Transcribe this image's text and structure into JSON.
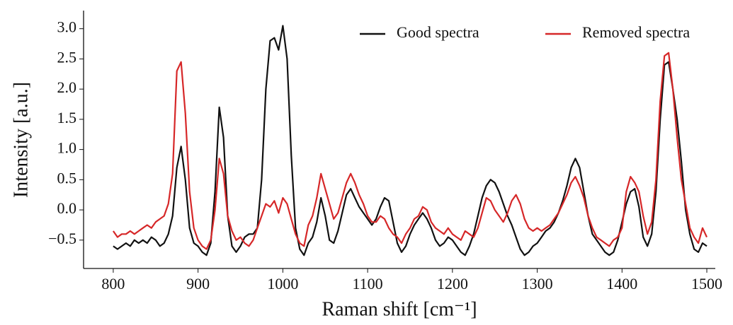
{
  "chart_data": {
    "type": "line",
    "xlabel": "Raman shift [cm⁻¹]",
    "ylabel": "Intensity [a.u.]",
    "legend": "upper right",
    "xlim": [
      765,
      1510
    ],
    "ylim": [
      -0.97,
      3.3
    ],
    "xticks": [
      800,
      900,
      1000,
      1100,
      1200,
      1300,
      1400,
      1500
    ],
    "yticks": [
      {
        "value": -0.5,
        "label": "−0.5"
      },
      {
        "value": 0,
        "label": "0.0"
      },
      0.5,
      {
        "value": 1,
        "label": "1.0"
      },
      1.5,
      {
        "value": 2,
        "label": "2.0"
      },
      2.5,
      {
        "value": 3,
        "label": "3.0"
      }
    ],
    "x": [
      800,
      805,
      810,
      815,
      820,
      825,
      830,
      835,
      840,
      845,
      850,
      855,
      860,
      865,
      870,
      875,
      880,
      885,
      890,
      895,
      900,
      905,
      910,
      915,
      920,
      925,
      930,
      935,
      940,
      945,
      950,
      955,
      960,
      965,
      970,
      975,
      980,
      985,
      990,
      995,
      1000,
      1005,
      1010,
      1015,
      1020,
      1025,
      1030,
      1035,
      1040,
      1045,
      1050,
      1055,
      1060,
      1065,
      1070,
      1075,
      1080,
      1085,
      1090,
      1095,
      1100,
      1105,
      1110,
      1115,
      1120,
      1125,
      1130,
      1135,
      1140,
      1145,
      1150,
      1155,
      1160,
      1165,
      1170,
      1175,
      1180,
      1185,
      1190,
      1195,
      1200,
      1205,
      1210,
      1215,
      1220,
      1225,
      1230,
      1235,
      1240,
      1245,
      1250,
      1255,
      1260,
      1265,
      1270,
      1275,
      1280,
      1285,
      1290,
      1295,
      1300,
      1305,
      1310,
      1315,
      1320,
      1325,
      1330,
      1335,
      1340,
      1345,
      1350,
      1355,
      1360,
      1365,
      1370,
      1375,
      1380,
      1385,
      1390,
      1395,
      1400,
      1405,
      1410,
      1415,
      1420,
      1425,
      1430,
      1435,
      1440,
      1445,
      1450,
      1455,
      1460,
      1465,
      1470,
      1475,
      1480,
      1485,
      1490,
      1495,
      1500
    ],
    "series": [
      {
        "name": "Good spectra",
        "color": "#111111",
        "values": [
          -0.6,
          -0.65,
          -0.6,
          -0.55,
          -0.6,
          -0.5,
          -0.55,
          -0.5,
          -0.55,
          -0.45,
          -0.5,
          -0.6,
          -0.55,
          -0.4,
          -0.1,
          0.7,
          1.05,
          0.5,
          -0.3,
          -0.55,
          -0.6,
          -0.7,
          -0.75,
          -0.55,
          0.3,
          1.7,
          1.2,
          -0.1,
          -0.6,
          -0.7,
          -0.6,
          -0.45,
          -0.4,
          -0.4,
          -0.3,
          0.5,
          2.0,
          2.8,
          2.85,
          2.65,
          3.05,
          2.5,
          0.9,
          -0.3,
          -0.65,
          -0.75,
          -0.55,
          -0.45,
          -0.2,
          0.2,
          -0.1,
          -0.5,
          -0.55,
          -0.35,
          -0.05,
          0.25,
          0.35,
          0.2,
          0.05,
          -0.05,
          -0.15,
          -0.25,
          -0.15,
          0.05,
          0.2,
          0.15,
          -0.2,
          -0.55,
          -0.7,
          -0.6,
          -0.4,
          -0.25,
          -0.15,
          -0.05,
          -0.15,
          -0.3,
          -0.5,
          -0.6,
          -0.55,
          -0.45,
          -0.5,
          -0.6,
          -0.7,
          -0.75,
          -0.6,
          -0.4,
          -0.1,
          0.2,
          0.4,
          0.5,
          0.45,
          0.3,
          0.1,
          -0.1,
          -0.25,
          -0.45,
          -0.65,
          -0.75,
          -0.7,
          -0.6,
          -0.55,
          -0.45,
          -0.35,
          -0.3,
          -0.2,
          -0.05,
          0.15,
          0.4,
          0.7,
          0.85,
          0.7,
          0.3,
          -0.1,
          -0.4,
          -0.5,
          -0.6,
          -0.7,
          -0.75,
          -0.7,
          -0.5,
          -0.2,
          0.1,
          0.3,
          0.35,
          0.05,
          -0.45,
          -0.6,
          -0.4,
          0.3,
          1.5,
          2.4,
          2.45,
          2.0,
          1.5,
          0.8,
          0.0,
          -0.4,
          -0.65,
          -0.7,
          -0.55,
          -0.6
        ]
      },
      {
        "name": "Removed spectra",
        "color": "#d62728",
        "values": [
          -0.35,
          -0.45,
          -0.4,
          -0.4,
          -0.35,
          -0.4,
          -0.35,
          -0.3,
          -0.25,
          -0.3,
          -0.2,
          -0.15,
          -0.1,
          0.1,
          0.6,
          2.3,
          2.45,
          1.6,
          0.3,
          -0.3,
          -0.5,
          -0.6,
          -0.65,
          -0.5,
          0.0,
          0.85,
          0.6,
          -0.1,
          -0.35,
          -0.5,
          -0.45,
          -0.55,
          -0.6,
          -0.5,
          -0.3,
          -0.1,
          0.1,
          0.05,
          0.15,
          -0.05,
          0.2,
          0.1,
          -0.15,
          -0.4,
          -0.55,
          -0.6,
          -0.25,
          -0.1,
          0.2,
          0.6,
          0.35,
          0.1,
          -0.15,
          -0.05,
          0.2,
          0.45,
          0.6,
          0.45,
          0.25,
          0.1,
          -0.1,
          -0.2,
          -0.2,
          -0.1,
          -0.15,
          -0.3,
          -0.4,
          -0.45,
          -0.55,
          -0.4,
          -0.3,
          -0.15,
          -0.1,
          0.05,
          0.0,
          -0.2,
          -0.3,
          -0.35,
          -0.4,
          -0.3,
          -0.4,
          -0.45,
          -0.5,
          -0.35,
          -0.4,
          -0.45,
          -0.3,
          -0.05,
          0.2,
          0.15,
          0.0,
          -0.1,
          -0.2,
          -0.05,
          0.15,
          0.25,
          0.1,
          -0.15,
          -0.3,
          -0.35,
          -0.3,
          -0.35,
          -0.3,
          -0.25,
          -0.15,
          -0.05,
          0.1,
          0.25,
          0.45,
          0.55,
          0.4,
          0.2,
          -0.1,
          -0.3,
          -0.45,
          -0.5,
          -0.55,
          -0.6,
          -0.5,
          -0.45,
          -0.3,
          0.3,
          0.55,
          0.45,
          0.3,
          -0.1,
          -0.4,
          -0.2,
          0.5,
          1.8,
          2.55,
          2.6,
          2.0,
          1.2,
          0.5,
          0.1,
          -0.3,
          -0.45,
          -0.55,
          -0.3,
          -0.45
        ]
      }
    ]
  }
}
